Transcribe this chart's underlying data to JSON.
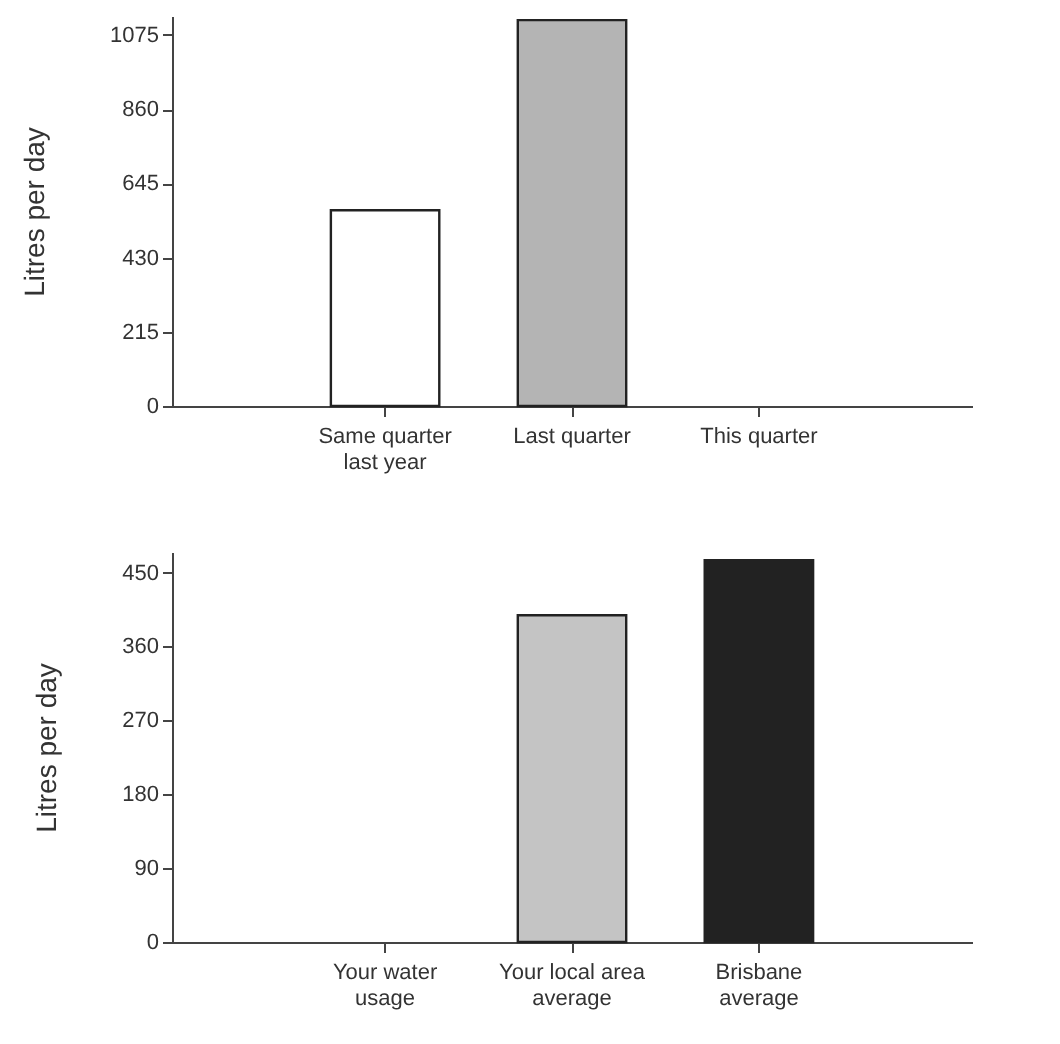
{
  "chart_data": [
    {
      "type": "bar",
      "ylabel": "Litres per day",
      "categories": [
        "Same quarter\nlast year",
        "Last quarter",
        "This quarter"
      ],
      "values": [
        567,
        1118,
        null
      ],
      "colors": [
        "#ffffff",
        "#b4b4b4",
        "#ffffff"
      ],
      "ylim": [
        0,
        1130
      ],
      "yticks": [
        0,
        215,
        430,
        645,
        860,
        1075
      ],
      "grid": false
    },
    {
      "type": "bar",
      "ylabel": "Litres per day",
      "categories": [
        "Your water\nusage",
        "Your local area\naverage",
        "Brisbane\naverage"
      ],
      "values": [
        null,
        398,
        465
      ],
      "colors": [
        "#ffffff",
        "#c4c4c4",
        "#222222"
      ],
      "ylim": [
        0,
        475
      ],
      "yticks": [
        0,
        90,
        180,
        270,
        360,
        450
      ],
      "grid": false
    }
  ]
}
